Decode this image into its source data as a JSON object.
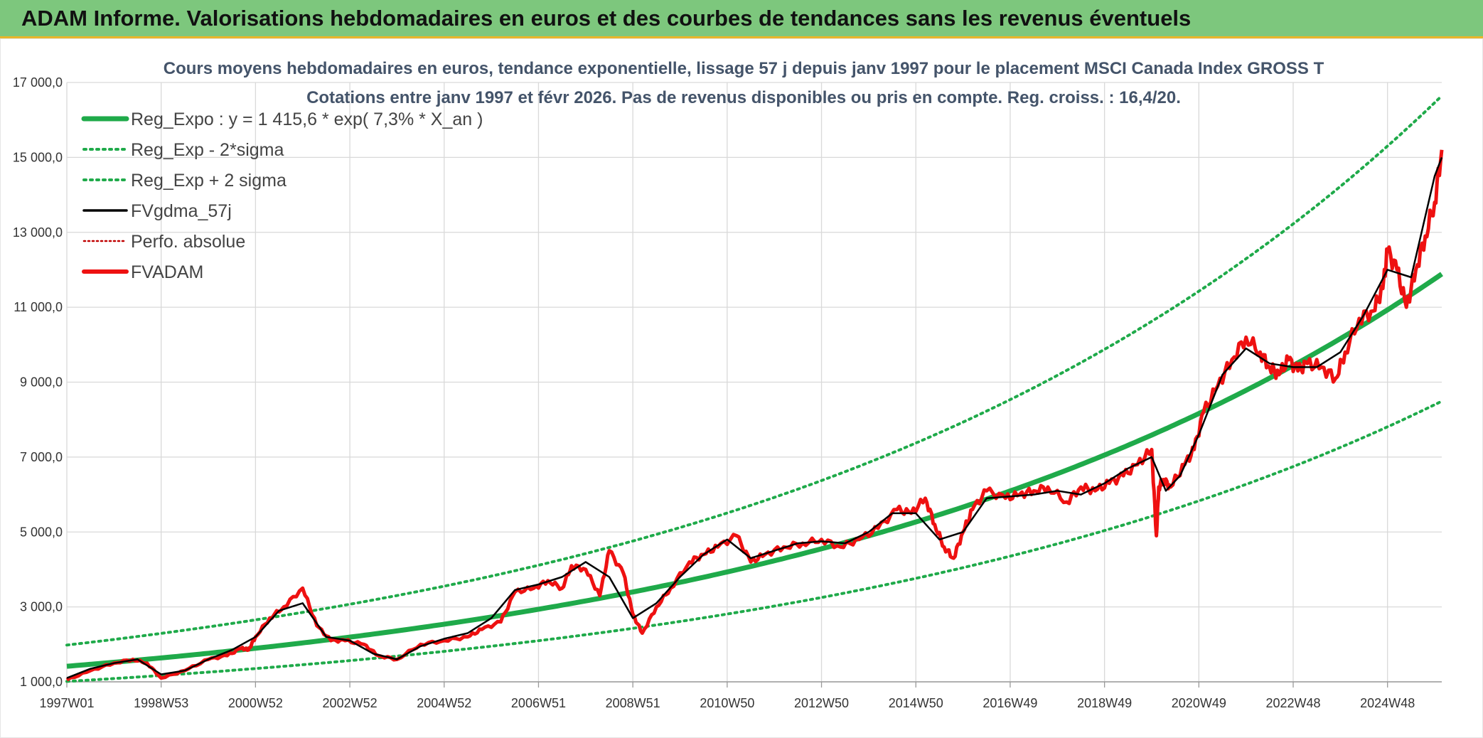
{
  "banner": {
    "title": "ADAM Informe. Valorisations hebdomadaires en euros et des courbes de tendances sans les revenus éventuels"
  },
  "colors": {
    "banner_bg": "#7dc77d",
    "banner_border": "#e8b52a",
    "reg_expo": "#1faa4a",
    "sigma": "#1faa4a",
    "fvgdma": "#000000",
    "perfo": "#c00000",
    "fvadam": "#ee1111",
    "grid": "#d9d9d9"
  },
  "chart_data": {
    "type": "line",
    "title": "Cours moyens hebdomadaires en euros, tendance exponentielle, lissage 57 j depuis janv 1997 pour le placement MSCI Canada Index GROSS T",
    "subtitle": "Cotations entre janv 1997 et févr 2026. Pas de revenus disponibles ou pris en compte. Reg. croiss. : 16,4/20.",
    "x_tick_labels": [
      "1997W01",
      "1998W53",
      "2000W52",
      "2002W52",
      "2004W52",
      "2006W51",
      "2008W51",
      "2010W50",
      "2012W50",
      "2014W50",
      "2016W49",
      "2018W49",
      "2020W49",
      "2022W48",
      "2024W48"
    ],
    "x_tick_positions": [
      1997.0,
      1999.0,
      2001.0,
      2003.0,
      2005.0,
      2007.0,
      2009.0,
      2011.0,
      2013.0,
      2015.0,
      2017.0,
      2019.0,
      2021.0,
      2023.0,
      2025.0
    ],
    "xlim": [
      1997.0,
      2026.15
    ],
    "y_tick_labels": [
      "1 000,0",
      "3 000,0",
      "5 000,0",
      "7 000,0",
      "9 000,0",
      "11 000,0",
      "13 000,0",
      "15 000,0",
      "17 000,0"
    ],
    "y_ticks": [
      1000,
      3000,
      5000,
      7000,
      9000,
      11000,
      13000,
      15000,
      17000
    ],
    "ylim": [
      1000,
      17000
    ],
    "grid": true,
    "legend_position": "top-left",
    "legend": [
      {
        "key": "reg_expo",
        "label": "Reg_Expo : y = 1 415,6 * exp( 7,3% *  X_an )",
        "style": "solid-thick"
      },
      {
        "key": "reg_minus",
        "label": "Reg_Exp - 2*sigma",
        "style": "dotted-green"
      },
      {
        "key": "reg_plus",
        "label": "Reg_Exp + 2 sigma",
        "style": "dotted-green"
      },
      {
        "key": "fvgdma",
        "label": "FVgdma_57j",
        "style": "solid-black"
      },
      {
        "key": "perfo",
        "label": "Perfo. absolue",
        "style": "dotted-red"
      },
      {
        "key": "fvadam",
        "label": "FVADAM",
        "style": "solid-red"
      }
    ],
    "regression": {
      "a": 1415.6,
      "rate": 0.073,
      "start_year": 1997.0,
      "sigma_factor": 1.4
    },
    "series": [
      {
        "key": "fvadam",
        "x": [
          1997.0,
          1997.5,
          1998.0,
          1998.4,
          1998.7,
          1999.0,
          1999.5,
          2000.0,
          2000.4,
          2000.7,
          2000.85,
          2001.0,
          2001.3,
          2001.6,
          2002.0,
          2002.3,
          2002.6,
          2002.9,
          2003.3,
          2003.6,
          2004.0,
          2004.5,
          2005.0,
          2005.5,
          2005.8,
          2006.2,
          2006.5,
          2006.9,
          2007.2,
          2007.5,
          2007.7,
          2008.0,
          2008.3,
          2008.5,
          2008.8,
          2009.0,
          2009.2,
          2009.5,
          2009.8,
          2010.2,
          2010.5,
          2010.8,
          2011.2,
          2011.5,
          2011.8,
          2012.2,
          2012.6,
          2013.0,
          2013.4,
          2013.8,
          2014.2,
          2014.6,
          2014.9,
          2015.2,
          2015.4,
          2015.6,
          2015.8,
          2016.0,
          2016.2,
          2016.5,
          2016.9,
          2017.2,
          2017.5,
          2017.8,
          2018.2,
          2018.5,
          2018.8,
          2019.1,
          2019.4,
          2019.7,
          2020.0,
          2020.1,
          2020.15,
          2020.25,
          2020.4,
          2020.7,
          2020.9,
          2021.1,
          2021.4,
          2021.7,
          2022.0,
          2022.3,
          2022.5,
          2022.7,
          2022.9,
          2023.1,
          2023.3,
          2023.6,
          2023.9,
          2024.1,
          2024.4,
          2024.7,
          2024.9,
          2025.0,
          2025.2,
          2025.4,
          2025.6,
          2025.8,
          2026.0,
          2026.15
        ],
        "y": [
          1050,
          1300,
          1500,
          1600,
          1500,
          1100,
          1300,
          1600,
          1700,
          1900,
          1850,
          2200,
          2700,
          3000,
          3500,
          2500,
          2100,
          2100,
          2000,
          1700,
          1600,
          2000,
          2100,
          2200,
          2400,
          2600,
          3400,
          3500,
          3700,
          3500,
          4100,
          4000,
          3300,
          4500,
          3900,
          2800,
          2300,
          3000,
          3500,
          4200,
          4400,
          4600,
          4900,
          4200,
          4400,
          4600,
          4700,
          4800,
          4600,
          4800,
          5100,
          5600,
          5500,
          5900,
          5200,
          4600,
          4300,
          5000,
          5600,
          6100,
          5900,
          6000,
          6100,
          6200,
          5800,
          6200,
          6100,
          6300,
          6500,
          6800,
          7200,
          4900,
          6200,
          6400,
          6200,
          6800,
          7200,
          8200,
          8900,
          9600,
          10200,
          9800,
          9400,
          9200,
          9600,
          9300,
          9500,
          9400,
          9100,
          9800,
          10700,
          10900,
          11500,
          12500,
          12000,
          11000,
          12000,
          12900,
          13800,
          15200
        ]
      },
      {
        "key": "fvgdma",
        "x": [
          1997.0,
          1997.5,
          1998.0,
          1998.5,
          1999.0,
          1999.5,
          2000.0,
          2000.5,
          2001.0,
          2001.5,
          2002.0,
          2002.5,
          2003.0,
          2003.5,
          2004.0,
          2004.5,
          2005.0,
          2005.5,
          2006.0,
          2006.5,
          2007.0,
          2007.5,
          2008.0,
          2008.5,
          2009.0,
          2009.5,
          2010.0,
          2010.5,
          2011.0,
          2011.5,
          2012.0,
          2012.5,
          2013.0,
          2013.5,
          2014.0,
          2014.5,
          2015.0,
          2015.5,
          2016.0,
          2016.5,
          2017.0,
          2017.5,
          2018.0,
          2018.5,
          2019.0,
          2019.5,
          2020.0,
          2020.3,
          2020.6,
          2021.0,
          2021.5,
          2022.0,
          2022.5,
          2023.0,
          2023.5,
          2024.0,
          2024.5,
          2025.0,
          2025.5,
          2026.0,
          2026.15
        ],
        "y": [
          1100,
          1350,
          1500,
          1600,
          1200,
          1300,
          1600,
          1850,
          2200,
          2900,
          3100,
          2200,
          2100,
          1750,
          1600,
          1950,
          2150,
          2300,
          2700,
          3450,
          3600,
          3800,
          4200,
          3800,
          2700,
          3100,
          3800,
          4400,
          4800,
          4300,
          4500,
          4700,
          4750,
          4700,
          5000,
          5500,
          5500,
          4800,
          5000,
          5900,
          5950,
          6000,
          6100,
          6000,
          6300,
          6700,
          7000,
          6100,
          6500,
          7600,
          9200,
          9900,
          9500,
          9400,
          9400,
          9800,
          10800,
          12000,
          11800,
          14500,
          15000
        ]
      }
    ]
  }
}
